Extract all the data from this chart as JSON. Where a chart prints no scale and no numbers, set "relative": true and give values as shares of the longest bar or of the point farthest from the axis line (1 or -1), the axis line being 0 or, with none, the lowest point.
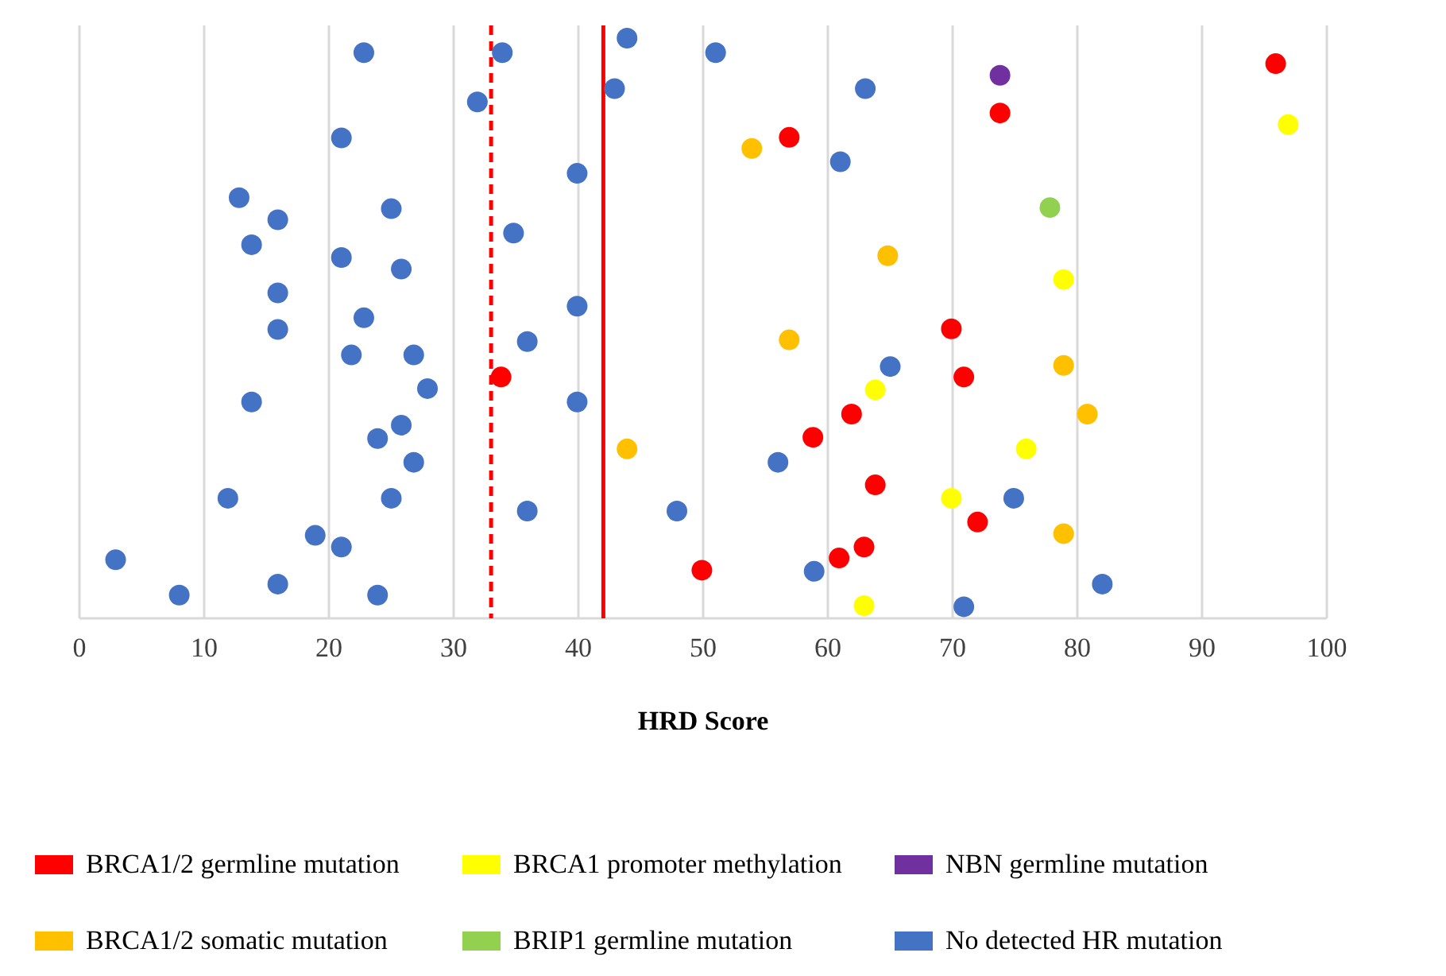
{
  "chart_data": {
    "type": "scatter",
    "xlabel": "HRD Score",
    "xlim": [
      0,
      100
    ],
    "xticks": [
      0,
      10,
      20,
      30,
      40,
      50,
      60,
      70,
      80,
      90,
      100
    ],
    "relative": true,
    "grid": "x",
    "legend": "bottom",
    "marker": "circle",
    "ref_lines": [
      {
        "axis": "x",
        "value": 33,
        "color": "#ff0000",
        "line_style": "dashed"
      },
      {
        "axis": "x",
        "value": 42,
        "color": "#ff0000",
        "line_style": "solid"
      }
    ],
    "series": [
      {
        "name": "BRCA1/2 germline mutation",
        "color": "#ff0000",
        "x": [
          95.9,
          73.8,
          56.9,
          69.9,
          33.8,
          49.9,
          70.9,
          61.9,
          58.8,
          63.8,
          72.0,
          62.9,
          60.9
        ],
        "values": [
          0.956,
          0.871,
          0.829,
          0.499,
          0.416,
          0.083,
          0.416,
          0.352,
          0.312,
          0.23,
          0.166,
          0.123,
          0.104
        ]
      },
      {
        "name": "BRCA1 promoter methylation",
        "color": "#ffff00",
        "x": [
          96.9,
          78.9,
          63.8,
          75.9,
          69.9,
          62.9
        ],
        "values": [
          0.851,
          0.584,
          0.394,
          0.292,
          0.207,
          0.022
        ]
      },
      {
        "name": "NBN germline mutation",
        "color": "#7030a0",
        "x": [
          73.8
        ],
        "values": [
          0.936
        ]
      },
      {
        "name": "BRCA1/2 somatic mutation",
        "color": "#ffc000",
        "x": [
          53.9,
          64.8,
          56.9,
          43.9,
          78.9,
          80.8,
          78.9
        ],
        "values": [
          0.81,
          0.625,
          0.48,
          0.292,
          0.436,
          0.352,
          0.146
        ]
      },
      {
        "name": "BRIP1 germline mutation",
        "color": "#92d050",
        "x": [
          77.8
        ],
        "values": [
          0.708
        ]
      },
      {
        "name": "No detected HR mutation",
        "color": "#4472c4",
        "x": [
          22.8,
          33.9,
          43.9,
          51.0,
          42.9,
          31.9,
          21.0,
          39.9,
          12.8,
          25.0,
          15.9,
          34.8,
          13.8,
          21.0,
          25.8,
          15.9,
          39.9,
          22.8,
          15.9,
          35.9,
          21.8,
          26.8,
          27.9,
          13.8,
          39.9,
          25.8,
          23.9,
          26.8,
          11.9,
          25.0,
          35.9,
          47.9,
          18.9,
          21.0,
          2.9,
          8.0,
          15.9,
          23.9,
          63.0,
          61.0,
          65.0,
          56.0,
          74.9,
          58.9,
          70.9,
          82.0
        ],
        "values": [
          0.975,
          0.975,
          1,
          0.975,
          0.913,
          0.89,
          0.828,
          0.767,
          0.725,
          0.706,
          0.687,
          0.664,
          0.644,
          0.622,
          0.602,
          0.561,
          0.538,
          0.518,
          0.498,
          0.477,
          0.454,
          0.454,
          0.396,
          0.373,
          0.373,
          0.333,
          0.31,
          0.269,
          0.207,
          0.207,
          0.185,
          0.185,
          0.143,
          0.123,
          0.101,
          0.04,
          0.059,
          0.04,
          0.913,
          0.787,
          0.434,
          0.269,
          0.207,
          0.081,
          0.02,
          0.059
        ]
      }
    ]
  }
}
